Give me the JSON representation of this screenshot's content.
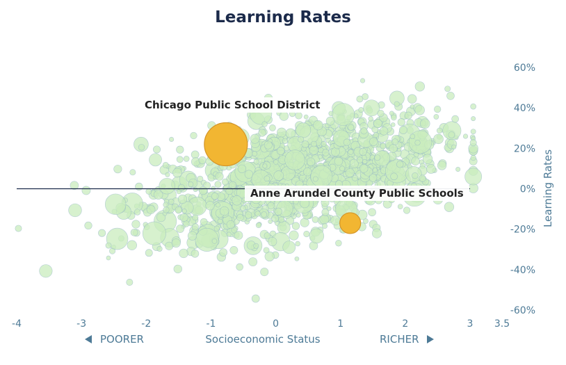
{
  "chart_data": {
    "type": "scatter",
    "title": "Learning Rates",
    "xlabel": "Socioeconomic Status",
    "ylabel": "Learning Rates",
    "xlim": [
      -4,
      3.5
    ],
    "ylim": [
      -60,
      60
    ],
    "x_ticks": [
      "-4",
      "-3",
      "-2",
      "-1",
      "0",
      "1",
      "2",
      "3",
      "3.5"
    ],
    "y_ticks": [
      "60%",
      "40%",
      "20%",
      "0%",
      "-20%",
      "-40%",
      "-60%"
    ],
    "x_direction_left": "POORER",
    "x_direction_right": "RICHER",
    "zero_line": 0,
    "colors": {
      "background_points": "#c9ecbd",
      "point_stroke": "#8fb0c8",
      "highlight": "#f2b632",
      "highlight_stroke": "#d4952a",
      "zero_line": "#1b2a4a",
      "axis_text": "#4d7a96"
    },
    "highlights": [
      {
        "name": "Chicago Public School District",
        "x": -0.77,
        "y": 22
      },
      {
        "name": "Anne Arundel County Public Schools",
        "x": 1.15,
        "y": -17
      }
    ]
  }
}
